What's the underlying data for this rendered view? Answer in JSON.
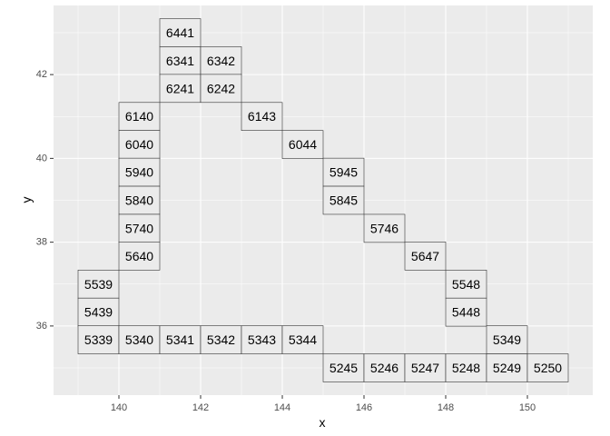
{
  "chart_data": {
    "type": "heatmap",
    "title": "",
    "xlabel": "x",
    "ylabel": "y",
    "xlim": [
      138.4,
      151.6
    ],
    "ylim": [
      34.35,
      43.65
    ],
    "xticks": [
      140,
      142,
      144,
      146,
      148,
      150
    ],
    "yticks": [
      36,
      38,
      40,
      42
    ],
    "x_tick_labels": [
      "140",
      "142",
      "144",
      "146",
      "148",
      "150"
    ],
    "y_tick_labels": [
      "36",
      "38",
      "40",
      "42"
    ],
    "tile_width": 1,
    "tile_height": 0.67,
    "grid": true,
    "legend": "none",
    "colors": {
      "panel": "#ebebeb",
      "grid_major": "#ffffff",
      "tile_fill": "#ebebeb",
      "tile_border": "#333333",
      "tick_mark": "#333333"
    },
    "tiles": [
      {
        "label": "6441",
        "x": 141.5,
        "y": 43.0
      },
      {
        "label": "6341",
        "x": 141.5,
        "y": 42.33
      },
      {
        "label": "6342",
        "x": 142.5,
        "y": 42.33
      },
      {
        "label": "6241",
        "x": 141.5,
        "y": 41.67
      },
      {
        "label": "6242",
        "x": 142.5,
        "y": 41.67
      },
      {
        "label": "6140",
        "x": 140.5,
        "y": 41.0
      },
      {
        "label": "6143",
        "x": 143.5,
        "y": 41.0
      },
      {
        "label": "6040",
        "x": 140.5,
        "y": 40.33
      },
      {
        "label": "6044",
        "x": 144.5,
        "y": 40.33
      },
      {
        "label": "5940",
        "x": 140.5,
        "y": 39.67
      },
      {
        "label": "5945",
        "x": 145.5,
        "y": 39.67
      },
      {
        "label": "5840",
        "x": 140.5,
        "y": 39.0
      },
      {
        "label": "5845",
        "x": 145.5,
        "y": 39.0
      },
      {
        "label": "5740",
        "x": 140.5,
        "y": 38.33
      },
      {
        "label": "5746",
        "x": 146.5,
        "y": 38.33
      },
      {
        "label": "5640",
        "x": 140.5,
        "y": 37.67
      },
      {
        "label": "5647",
        "x": 147.5,
        "y": 37.67
      },
      {
        "label": "5539",
        "x": 139.5,
        "y": 37.0
      },
      {
        "label": "5548",
        "x": 148.5,
        "y": 37.0
      },
      {
        "label": "5439",
        "x": 139.5,
        "y": 36.33
      },
      {
        "label": "5448",
        "x": 148.5,
        "y": 36.33
      },
      {
        "label": "5339",
        "x": 139.5,
        "y": 35.67
      },
      {
        "label": "5340",
        "x": 140.5,
        "y": 35.67
      },
      {
        "label": "5341",
        "x": 141.5,
        "y": 35.67
      },
      {
        "label": "5342",
        "x": 142.5,
        "y": 35.67
      },
      {
        "label": "5343",
        "x": 143.5,
        "y": 35.67
      },
      {
        "label": "5344",
        "x": 144.5,
        "y": 35.67
      },
      {
        "label": "5349",
        "x": 149.5,
        "y": 35.67
      },
      {
        "label": "5245",
        "x": 145.5,
        "y": 35.0
      },
      {
        "label": "5246",
        "x": 146.5,
        "y": 35.0
      },
      {
        "label": "5247",
        "x": 147.5,
        "y": 35.0
      },
      {
        "label": "5248",
        "x": 148.5,
        "y": 35.0
      },
      {
        "label": "5249",
        "x": 149.5,
        "y": 35.0
      },
      {
        "label": "5250",
        "x": 150.5,
        "y": 35.0
      }
    ]
  }
}
